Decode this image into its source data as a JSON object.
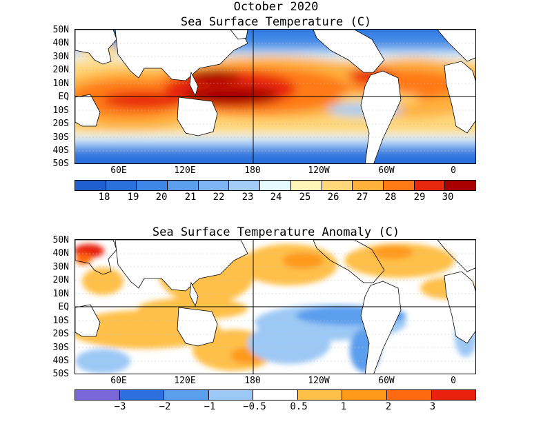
{
  "title": "October 2020",
  "top_panel": {
    "title": "Sea Surface Temperature (C)",
    "lat_labels": [
      "50N",
      "40N",
      "30N",
      "20N",
      "10N",
      "EQ",
      "10S",
      "20S",
      "30S",
      "40S",
      "50S"
    ],
    "lon_labels": [
      "60E",
      "120E",
      "180",
      "120W",
      "60W",
      "0"
    ],
    "colorbar": {
      "colors": [
        "#1f5fd0",
        "#2b71dc",
        "#3e87e6",
        "#5a9eed",
        "#7db4f1",
        "#a4cdf6",
        "#e6fbff",
        "#fff4b8",
        "#ffd77a",
        "#ffb13c",
        "#ff7a14",
        "#e8280c",
        "#a80000"
      ],
      "labels": [
        "18",
        "19",
        "20",
        "21",
        "22",
        "23",
        "24",
        "25",
        "26",
        "27",
        "28",
        "29",
        "30"
      ]
    }
  },
  "bottom_panel": {
    "title": "Sea Surface Temperature Anomaly (C)",
    "lat_labels": [
      "50N",
      "40N",
      "30N",
      "20N",
      "10N",
      "EQ",
      "10S",
      "20S",
      "30S",
      "40S",
      "50S"
    ],
    "lon_labels": [
      "60E",
      "120E",
      "180",
      "120W",
      "60W",
      "0"
    ],
    "colorbar": {
      "colors": [
        "#7b68d8",
        "#2d6fdc",
        "#5a9eed",
        "#9cc8f5",
        "#ffffff",
        "#ffc04a",
        "#ff9a1a",
        "#ff6a10",
        "#e8200c"
      ],
      "labels": [
        "−3",
        "−2",
        "−1",
        "−0.5",
        "0.5",
        "1",
        "2",
        "3"
      ]
    }
  }
}
